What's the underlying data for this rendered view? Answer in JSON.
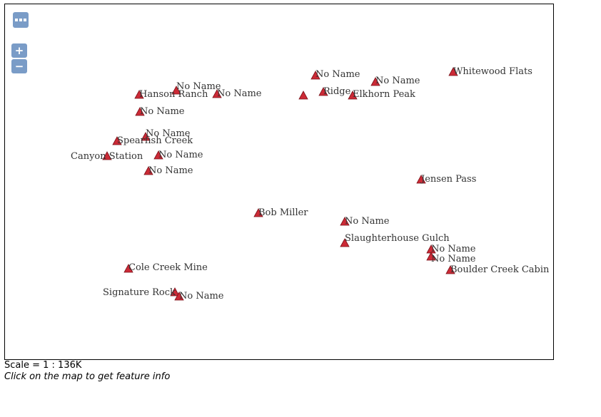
{
  "map": {
    "controls": {
      "layer_switcher_icon": "ellipsis-icon",
      "zoom_in_label": "+",
      "zoom_out_label": "−"
    },
    "marker_color": "#cc2a36",
    "features": [
      {
        "name": "No Name"
      },
      {
        "name": "Hanson Ranch"
      },
      {
        "name": "No Name"
      },
      {
        "name": "No Name"
      },
      {
        "name": "No Name"
      },
      {
        "name": "Spearfish Creek"
      },
      {
        "name": "Canyon Station"
      },
      {
        "name": "No Name"
      },
      {
        "name": "No Name"
      },
      {
        "name": "No Name"
      },
      {
        "name": ""
      },
      {
        "name": "Ridge"
      },
      {
        "name": "Elkhorn Peak"
      },
      {
        "name": "No Name"
      },
      {
        "name": "Whitewood Flats"
      },
      {
        "name": "Jensen Pass"
      },
      {
        "name": "Bob Miller"
      },
      {
        "name": "No Name"
      },
      {
        "name": "Slaughterhouse Gulch"
      },
      {
        "name": "No Name"
      },
      {
        "name": "No Name"
      },
      {
        "name": "Boulder Creek Cabin"
      },
      {
        "name": "Cole Creek Mine"
      },
      {
        "name": "Signature Rock"
      },
      {
        "name": "No Name"
      }
    ]
  },
  "footer": {
    "scale_text": "Scale = 1 : 136K",
    "info_text": "Click on the map to get feature info"
  }
}
